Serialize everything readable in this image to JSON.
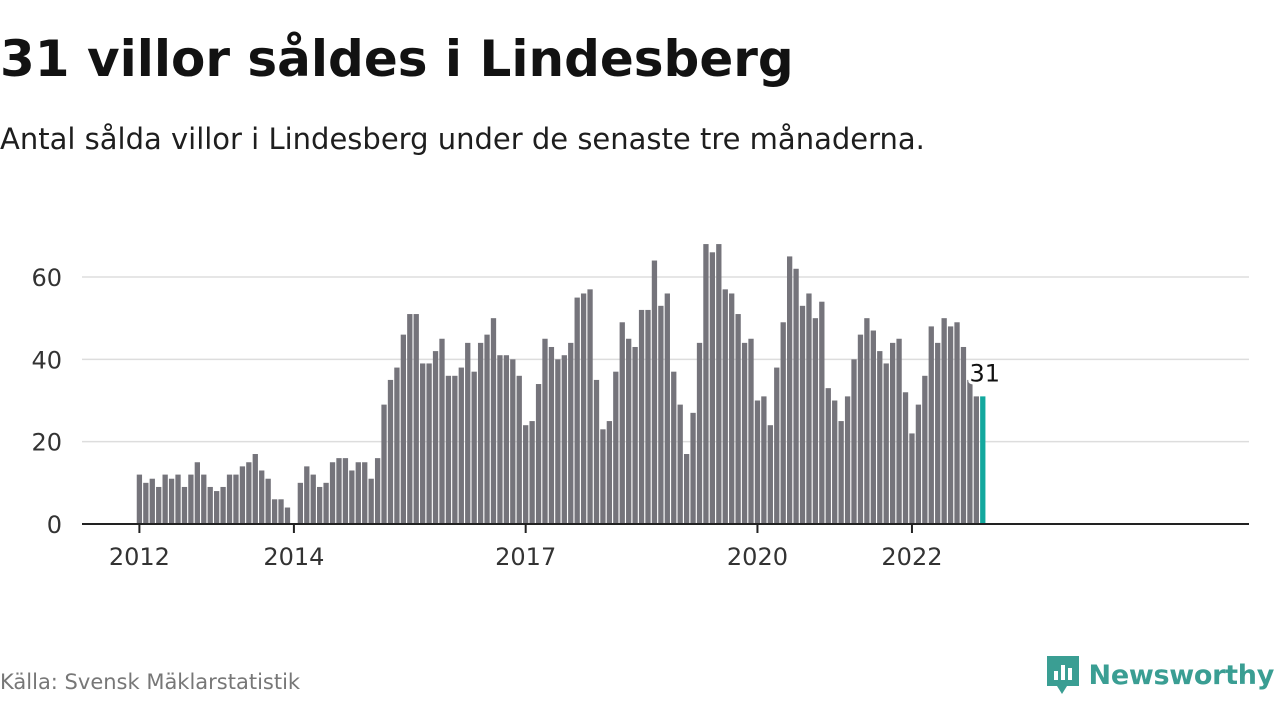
{
  "header": {
    "title": "31 villor såldes i Lindesberg",
    "subtitle": "Antal sålda villor i Lindesberg under de senaste tre månaderna."
  },
  "footer": {
    "source": "Källa: Svensk Mäklarstatistik",
    "brand": "Newsworthy",
    "brand_icon": "newsworthy-logo-icon"
  },
  "colors": {
    "bar": "#75747b",
    "highlight": "#13a89e",
    "grid": "#dddddd",
    "axis": "#222222",
    "brand": "#3a9e93"
  },
  "chart_data": {
    "type": "bar",
    "title": "",
    "xlabel": "",
    "ylabel": "",
    "ylim": [
      0,
      70
    ],
    "yticks": [
      0,
      20,
      40,
      60
    ],
    "xticks": [
      "2012",
      "2014",
      "2017",
      "2020",
      "2022"
    ],
    "grid": true,
    "first_month": "2012-01",
    "values": [
      12,
      10,
      11,
      9,
      12,
      11,
      12,
      9,
      12,
      15,
      12,
      9,
      8,
      9,
      12,
      12,
      14,
      15,
      17,
      13,
      11,
      6,
      6,
      4,
      0,
      10,
      14,
      12,
      9,
      10,
      15,
      16,
      16,
      13,
      15,
      15,
      11,
      16,
      29,
      35,
      38,
      46,
      51,
      51,
      39,
      39,
      42,
      45,
      36,
      36,
      38,
      44,
      37,
      44,
      46,
      50,
      41,
      41,
      40,
      36,
      24,
      25,
      34,
      45,
      43,
      40,
      41,
      44,
      55,
      56,
      57,
      35,
      23,
      25,
      37,
      49,
      45,
      43,
      52,
      52,
      64,
      53,
      56,
      37,
      29,
      17,
      27,
      44,
      68,
      66,
      68,
      57,
      56,
      51,
      44,
      45,
      30,
      31,
      24,
      38,
      49,
      65,
      62,
      53,
      56,
      50,
      54,
      33,
      30,
      25,
      31,
      40,
      46,
      50,
      47,
      42,
      39,
      44,
      45,
      32,
      22,
      29,
      36,
      48,
      44,
      50,
      48,
      49,
      43,
      35,
      31,
      31
    ],
    "highlight_last": true,
    "highlight_label": "31"
  }
}
